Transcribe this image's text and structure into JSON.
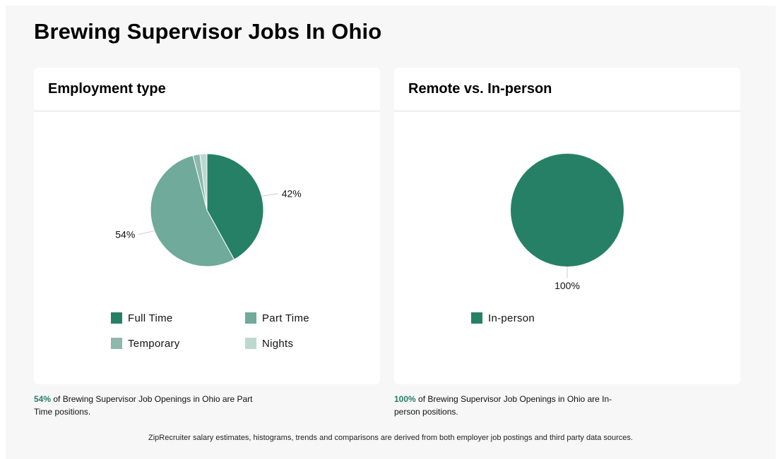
{
  "page": {
    "title": "Brewing Supervisor Jobs In Ohio",
    "footer": "ZipRecruiter salary estimates, histograms, trends and comparisons are derived from both employer job postings and third party data sources."
  },
  "chart_data": [
    {
      "type": "pie",
      "title": "Employment type",
      "categories": [
        "Full Time",
        "Part Time",
        "Temporary",
        "Nights"
      ],
      "values": [
        42,
        54,
        2,
        2
      ],
      "colors": [
        "#268066",
        "#6faa9a",
        "#8db8ab",
        "#bcd9d0"
      ],
      "labels": [
        {
          "category": "Full Time",
          "text": "42%"
        },
        {
          "category": "Part Time",
          "text": "54%"
        }
      ],
      "legend": "bottom"
    },
    {
      "type": "pie",
      "title": "Remote vs. In-person",
      "categories": [
        "In-person"
      ],
      "values": [
        100
      ],
      "colors": [
        "#268066"
      ],
      "labels": [
        {
          "category": "In-person",
          "text": "100%"
        }
      ],
      "legend": "bottom"
    }
  ],
  "notes": {
    "left": {
      "pct": "54%",
      "text": " of Brewing Supervisor Job Openings in Ohio are Part Time positions."
    },
    "right": {
      "pct": "100%",
      "text": " of Brewing Supervisor Job Openings in Ohio are In-person positions."
    }
  }
}
